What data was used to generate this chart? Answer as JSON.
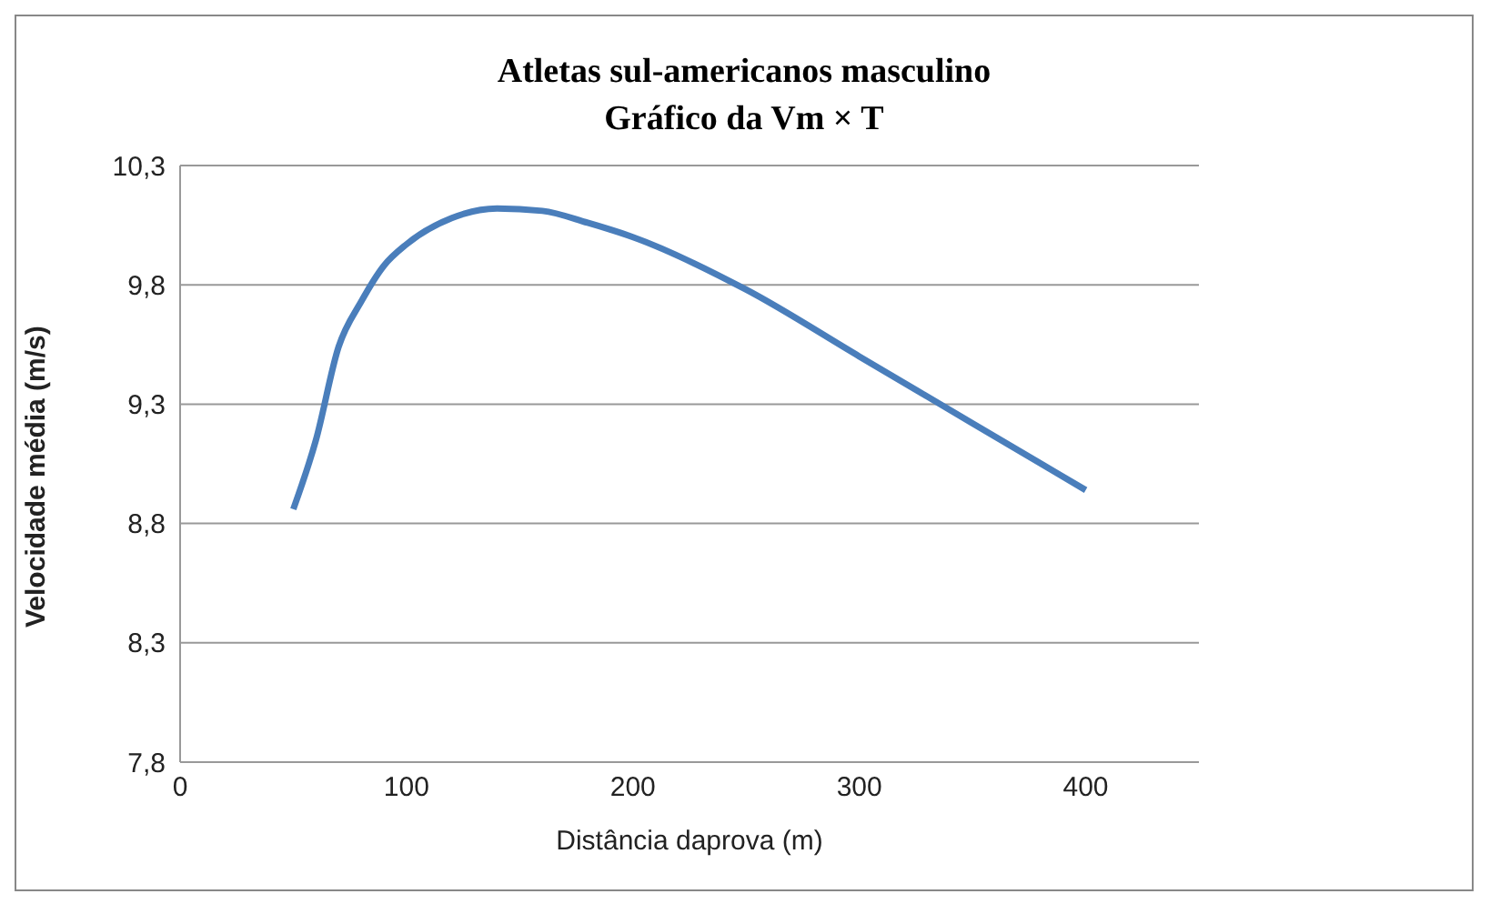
{
  "chart_data": {
    "type": "line",
    "title": "Atletas sul-americanos masculino",
    "subtitle": "Gráfico da Vm × T",
    "xlabel": "Distância daprova (m)",
    "ylabel": "Velocidade média (m/s)",
    "x": [
      50,
      60,
      70,
      80,
      90,
      100,
      120,
      140,
      160,
      180,
      200,
      250,
      300,
      350,
      400
    ],
    "series": [
      {
        "color": "#4a7ebb",
        "values": [
          8.86,
          9.15,
          9.54,
          9.73,
          9.88,
          9.97,
          10.08,
          10.12,
          10.11,
          10.06,
          10.0,
          9.78,
          9.5,
          9.22,
          8.94
        ]
      }
    ],
    "xlim": [
      0,
      450
    ],
    "xticks": [
      0,
      100,
      200,
      300,
      400
    ],
    "ylim": [
      7.8,
      10.3
    ],
    "yticks": [
      {
        "value": 7.8,
        "label": "7,8"
      },
      {
        "value": 8.3,
        "label": "8,3"
      },
      {
        "value": 8.8,
        "label": "8,8"
      },
      {
        "value": 9.3,
        "label": "9,3"
      },
      {
        "value": 9.8,
        "label": "9,8"
      },
      {
        "value": 10.3,
        "label": "10,3"
      }
    ],
    "grid": "y",
    "legend": false,
    "marker": "none",
    "line_style": "solid"
  }
}
